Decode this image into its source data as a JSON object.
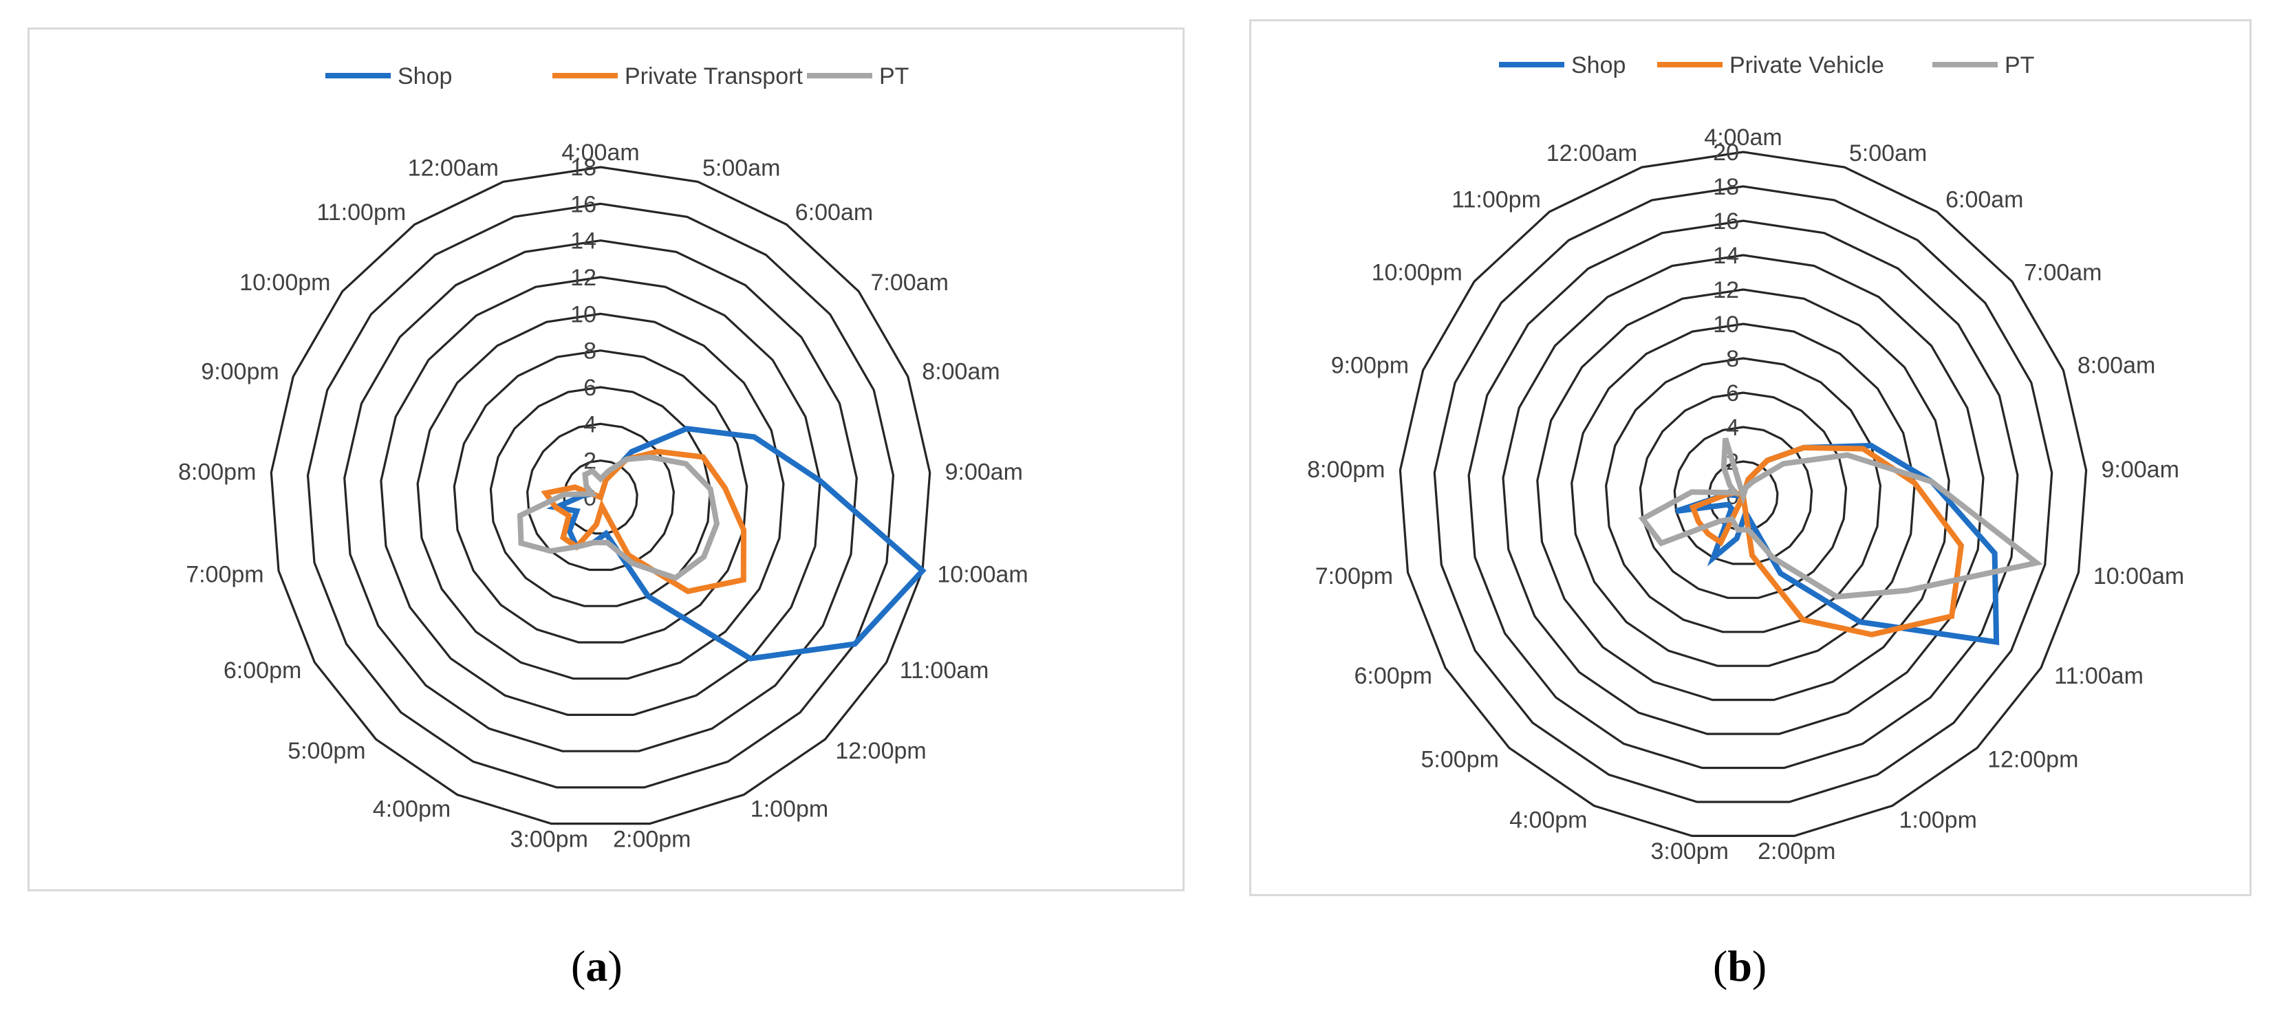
{
  "chart_data": [
    {
      "type": "radar",
      "panel_caption": "a",
      "categories": [
        "4:00am",
        "5:00am",
        "6:00am",
        "7:00am",
        "8:00am",
        "9:00am",
        "10:00am",
        "11:00am",
        "12:00pm",
        "1:00pm",
        "2:00pm",
        "3:00pm",
        "4:00pm",
        "5:00pm",
        "6:00pm",
        "7:00pm",
        "8:00pm",
        "9:00pm",
        "10:00pm",
        "11:00pm",
        "12:00am"
      ],
      "tick_labels": [
        "0",
        "2",
        "4",
        "6",
        "8",
        "10",
        "12",
        "14",
        "16",
        "18"
      ],
      "rmax": 18,
      "grid": true,
      "legend_position": "top",
      "series": [
        {
          "name": "Shop",
          "color": "#1f6fc5",
          "values": [
            0,
            1,
            3,
            6,
            9,
            12,
            18,
            16,
            12,
            6,
            2,
            2.5,
            3,
            2.5,
            1.5,
            2.5,
            1,
            0.5,
            0,
            0,
            0
          ]
        },
        {
          "name": "Private Transport",
          "color": "#f07f24",
          "values": [
            0,
            1,
            2.5,
            4,
            6,
            6.8,
            8,
            9,
            7,
            3.5,
            0.5,
            1.5,
            3,
            3,
            2,
            2.5,
            3,
            1.5,
            0,
            0,
            0
          ]
        },
        {
          "name": "PT",
          "color": "#a6a6a6",
          "values": [
            1,
            1.5,
            2.5,
            3.5,
            5,
            6,
            6.5,
            6.5,
            6,
            4,
            2.5,
            2.5,
            3,
            4,
            5,
            4.5,
            2,
            0.5,
            1,
            1.5,
            1.5
          ]
        }
      ]
    },
    {
      "type": "radar",
      "panel_caption": "b",
      "categories": [
        "4:00am",
        "5:00am",
        "6:00am",
        "7:00am",
        "8:00am",
        "9:00am",
        "10:00am",
        "11:00am",
        "12:00pm",
        "1:00pm",
        "2:00pm",
        "3:00pm",
        "4:00pm",
        "5:00pm",
        "6:00pm",
        "7:00pm",
        "8:00pm",
        "9:00pm",
        "10:00pm",
        "11:00pm",
        "12:00am"
      ],
      "tick_labels": [
        "0",
        "2",
        "4",
        "6",
        "8",
        "10",
        "12",
        "14",
        "16",
        "18",
        "20"
      ],
      "rmax": 20,
      "grid": true,
      "legend_position": "top",
      "series": [
        {
          "name": "Shop",
          "color": "#1f6fc5",
          "values": [
            0,
            1,
            2.5,
            4.5,
            8,
            11,
            15,
            17,
            10,
            5,
            1,
            2.5,
            4,
            1,
            1,
            4,
            1,
            0,
            0,
            0,
            0
          ]
        },
        {
          "name": "Private Vehicle",
          "color": "#f07f24",
          "values": [
            0,
            1,
            2.5,
            4.5,
            7.5,
            10,
            13,
            14,
            11,
            8,
            3.5,
            0,
            3,
            3,
            3,
            3,
            1,
            0.5,
            0,
            0,
            0
          ]
        },
        {
          "name": "PT",
          "color": "#a6a6a6",
          "values": [
            0,
            0.5,
            1,
            3,
            6.5,
            11,
            17.5,
            11,
            8,
            4,
            2,
            2,
            1.5,
            2,
            5.5,
            6,
            3,
            0.5,
            1,
            2,
            3.5
          ]
        }
      ]
    }
  ]
}
